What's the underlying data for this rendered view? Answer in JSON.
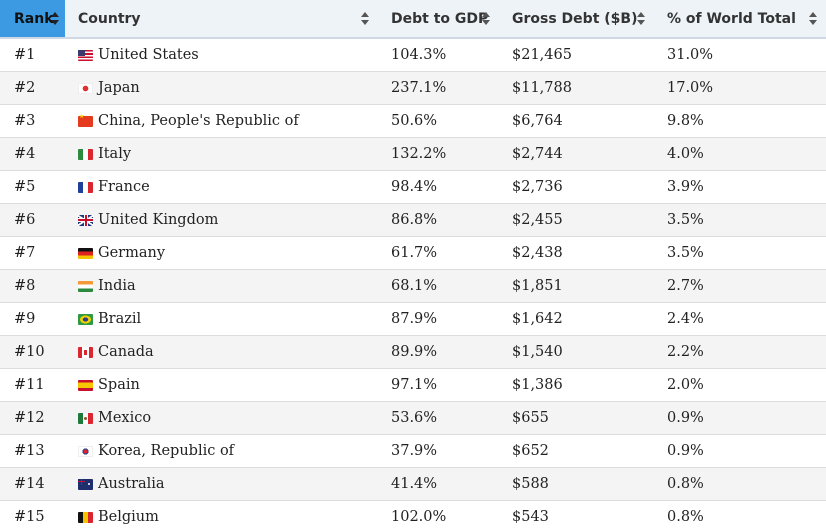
{
  "table": {
    "headers": [
      {
        "key": "rank",
        "label": "Rank"
      },
      {
        "key": "country",
        "label": "Country"
      },
      {
        "key": "debt_to_gdp",
        "label": "Debt to GDP"
      },
      {
        "key": "gross_debt",
        "label": "Gross Debt ($B)"
      },
      {
        "key": "world_total",
        "label": "% of World Total"
      }
    ],
    "active_sort_color": "#3b9ae1",
    "rows": [
      {
        "rank": "#1",
        "flag": "us-flag-icon",
        "country": "United States",
        "debt_to_gdp": "104.3%",
        "gross_debt": "$21,465",
        "world_total": "31.0%"
      },
      {
        "rank": "#2",
        "flag": "japan-flag-icon",
        "country": "Japan",
        "debt_to_gdp": "237.1%",
        "gross_debt": "$11,788",
        "world_total": "17.0%"
      },
      {
        "rank": "#3",
        "flag": "china-flag-icon",
        "country": "China, People's Republic of",
        "debt_to_gdp": "50.6%",
        "gross_debt": "$6,764",
        "world_total": "9.8%"
      },
      {
        "rank": "#4",
        "flag": "italy-flag-icon",
        "country": "Italy",
        "debt_to_gdp": "132.2%",
        "gross_debt": "$2,744",
        "world_total": "4.0%"
      },
      {
        "rank": "#5",
        "flag": "france-flag-icon",
        "country": "France",
        "debt_to_gdp": "98.4%",
        "gross_debt": "$2,736",
        "world_total": "3.9%"
      },
      {
        "rank": "#6",
        "flag": "uk-flag-icon",
        "country": "United Kingdom",
        "debt_to_gdp": "86.8%",
        "gross_debt": "$2,455",
        "world_total": "3.5%"
      },
      {
        "rank": "#7",
        "flag": "germany-flag-icon",
        "country": "Germany",
        "debt_to_gdp": "61.7%",
        "gross_debt": "$2,438",
        "world_total": "3.5%"
      },
      {
        "rank": "#8",
        "flag": "india-flag-icon",
        "country": "India",
        "debt_to_gdp": "68.1%",
        "gross_debt": "$1,851",
        "world_total": "2.7%"
      },
      {
        "rank": "#9",
        "flag": "brazil-flag-icon",
        "country": "Brazil",
        "debt_to_gdp": "87.9%",
        "gross_debt": "$1,642",
        "world_total": "2.4%"
      },
      {
        "rank": "#10",
        "flag": "canada-flag-icon",
        "country": "Canada",
        "debt_to_gdp": "89.9%",
        "gross_debt": "$1,540",
        "world_total": "2.2%"
      },
      {
        "rank": "#11",
        "flag": "spain-flag-icon",
        "country": "Spain",
        "debt_to_gdp": "97.1%",
        "gross_debt": "$1,386",
        "world_total": "2.0%"
      },
      {
        "rank": "#12",
        "flag": "mexico-flag-icon",
        "country": "Mexico",
        "debt_to_gdp": "53.6%",
        "gross_debt": "$655",
        "world_total": "0.9%"
      },
      {
        "rank": "#13",
        "flag": "korea-flag-icon",
        "country": "Korea, Republic of",
        "debt_to_gdp": "37.9%",
        "gross_debt": "$652",
        "world_total": "0.9%"
      },
      {
        "rank": "#14",
        "flag": "australia-flag-icon",
        "country": "Australia",
        "debt_to_gdp": "41.4%",
        "gross_debt": "$588",
        "world_total": "0.8%"
      },
      {
        "rank": "#15",
        "flag": "belgium-flag-icon",
        "country": "Belgium",
        "debt_to_gdp": "102.0%",
        "gross_debt": "$543",
        "world_total": "0.8%"
      }
    ]
  }
}
